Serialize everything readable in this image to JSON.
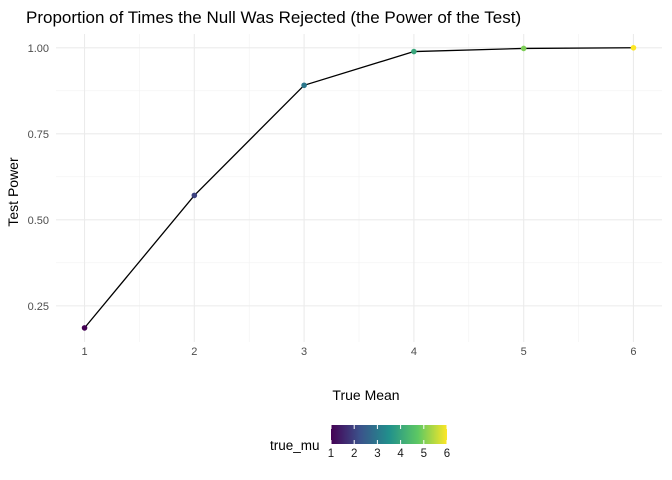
{
  "chart_data": {
    "type": "line",
    "title": "Proportion of Times the Null Was Rejected (the Power of the Test)",
    "xlabel": "True Mean",
    "ylabel": "Test Power",
    "x": [
      1,
      2,
      3,
      4,
      5,
      6
    ],
    "series": [
      {
        "values": [
          0.186,
          0.571,
          0.891,
          0.989,
          0.998,
          1.0
        ]
      }
    ],
    "xlim": [
      0.74,
      6.26
    ],
    "ylim": [
      0.145,
      1.04
    ],
    "xticks": [
      1,
      2,
      3,
      4,
      5,
      6
    ],
    "xtick_labels": [
      "1",
      "2",
      "3",
      "4",
      "5",
      "6"
    ],
    "yticks": [
      0.25,
      0.5,
      0.75,
      1.0
    ],
    "ytick_labels": [
      "0.25",
      "0.50",
      "0.75",
      "1.00"
    ],
    "grid": true,
    "line_color": "#000000",
    "point_color_by": "true_mu",
    "colorscale": "viridis",
    "colorscale_stops": [
      "#440154",
      "#3b528b",
      "#21908c",
      "#5dc863",
      "#fde725"
    ],
    "legend": {
      "title": "true_mu",
      "placement": "bottom",
      "range": [
        1,
        6
      ],
      "ticks": [
        1,
        2,
        3,
        4,
        5,
        6
      ],
      "tick_labels": [
        "1",
        "2",
        "3",
        "4",
        "5",
        "6"
      ]
    }
  }
}
